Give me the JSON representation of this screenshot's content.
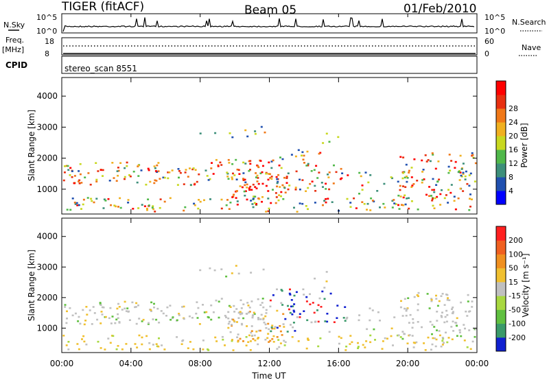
{
  "header": {
    "radar": "TIGER (fitACF)",
    "beam": "Beam 05",
    "date": "01/Feb/2010"
  },
  "top_panels": {
    "nsky_label": "N.Sky",
    "nsky_ticks": [
      "10^5",
      "10^0"
    ],
    "nsearch_label": "N.Search",
    "nsearch_ticks": [
      "10^5",
      "10^0"
    ],
    "freq_label": "Freq.",
    "freq_unit": "[MHz]",
    "freq_ticks": [
      "18",
      "8"
    ],
    "nave_label": "Nave",
    "nave_ticks": [
      "60",
      "0"
    ],
    "cpid_label": "CPID",
    "cpid_value": "stereo_scan 8551"
  },
  "chart_data": [
    {
      "type": "heatmap",
      "name": "power",
      "ylabel": "Slant Range [km]",
      "ylim": [
        200,
        4600
      ],
      "yticks": [
        1000,
        2000,
        3000,
        4000
      ],
      "xlim": [
        0,
        24
      ],
      "colorbar_label": "Power [dB]",
      "colorbar_ticks": [
        "4",
        "8",
        "12",
        "16",
        "20",
        "24",
        "28"
      ],
      "colorbar_colors": [
        "#0000ff",
        "#2050b0",
        "#3d8f7a",
        "#50b84a",
        "#c8d820",
        "#f0b020",
        "#f07818",
        "#e83010",
        "#ff0000"
      ]
    },
    {
      "type": "heatmap",
      "name": "velocity",
      "ylabel": "Slant Range [km]",
      "ylim": [
        200,
        4600
      ],
      "yticks": [
        1000,
        2000,
        3000,
        4000
      ],
      "xlim": [
        0,
        24
      ],
      "xticks": [
        "00:00",
        "04:00",
        "08:00",
        "12:00",
        "16:00",
        "20:00",
        "00:00"
      ],
      "xlabel": "Time UT",
      "colorbar_label": "Velocity [m s⁻¹]",
      "colorbar_ticks": [
        "200",
        "100",
        "50",
        "15",
        "-15",
        "-50",
        "-100",
        "-200"
      ],
      "colorbar_colors": [
        "#1020d0",
        "#3a9a6a",
        "#60c040",
        "#a8d840",
        "#c0c0c0",
        "#f0c030",
        "#f09020",
        "#f06020",
        "#ff2020"
      ]
    }
  ]
}
